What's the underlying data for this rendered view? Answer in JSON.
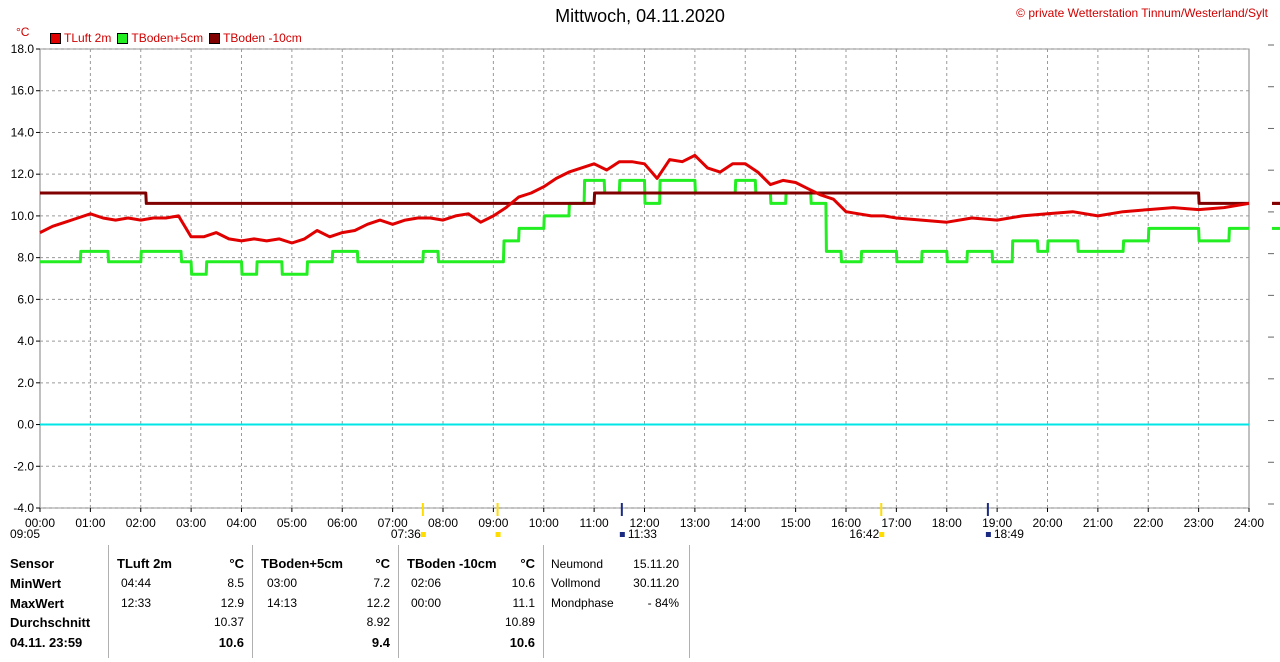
{
  "header": {
    "title": "Mittwoch, 04.11.2020",
    "credit": "© private Wetterstation Tinnum/Westerland/Sylt",
    "unit": "°C"
  },
  "colors": {
    "tluft": "#e00000",
    "tboden5": "#22ee22",
    "tboden10": "#800000",
    "zero_line": "#00e5e5"
  },
  "chart_data": {
    "type": "line",
    "title": "Mittwoch, 04.11.2020",
    "ylabel": "°C",
    "ylim": [
      -4,
      18
    ],
    "xlim": [
      0,
      24
    ],
    "grid": true,
    "legend_position": "top-left",
    "yticks": [
      "18.0",
      "16.0",
      "14.0",
      "12.0",
      "10.0",
      "8.0",
      "6.0",
      "4.0",
      "2.0",
      "0.0",
      "-2.0",
      "-4.0"
    ],
    "xticks": [
      "00:00",
      "01:00",
      "02:00",
      "03:00",
      "04:00",
      "05:00",
      "06:00",
      "07:00",
      "08:00",
      "09:00",
      "10:00",
      "11:00",
      "12:00",
      "13:00",
      "14:00",
      "15:00",
      "16:00",
      "17:00",
      "18:00",
      "19:00",
      "20:00",
      "21:00",
      "22:00",
      "23:00",
      "24:00"
    ],
    "series": [
      {
        "name": "TLuft 2m",
        "x": [
          0,
          0.25,
          0.5,
          0.75,
          1.0,
          1.25,
          1.5,
          1.75,
          2.0,
          2.25,
          2.5,
          2.75,
          3.0,
          3.25,
          3.5,
          3.75,
          4.0,
          4.25,
          4.5,
          4.75,
          5.0,
          5.25,
          5.5,
          5.75,
          6.0,
          6.25,
          6.5,
          6.75,
          7.0,
          7.25,
          7.5,
          7.75,
          8.0,
          8.25,
          8.5,
          8.75,
          9.0,
          9.25,
          9.5,
          9.75,
          10.0,
          10.25,
          10.5,
          10.75,
          11.0,
          11.25,
          11.5,
          11.75,
          12.0,
          12.25,
          12.5,
          12.75,
          13.0,
          13.25,
          13.5,
          13.75,
          14.0,
          14.25,
          14.5,
          14.75,
          15.0,
          15.25,
          15.5,
          15.75,
          16.0,
          16.25,
          16.5,
          16.75,
          17.0,
          17.5,
          18.0,
          18.5,
          19.0,
          19.5,
          20.0,
          20.5,
          21.0,
          21.5,
          22.0,
          22.5,
          23.0,
          23.5,
          24.0
        ],
        "values": [
          9.2,
          9.5,
          9.7,
          9.9,
          10.1,
          9.9,
          9.8,
          9.9,
          9.8,
          9.9,
          9.9,
          10.0,
          9.0,
          9.0,
          9.2,
          8.9,
          8.8,
          8.9,
          8.8,
          8.9,
          8.7,
          8.9,
          9.3,
          9.0,
          9.2,
          9.3,
          9.6,
          9.8,
          9.6,
          9.8,
          9.9,
          9.9,
          9.8,
          10.0,
          10.1,
          9.7,
          10.0,
          10.4,
          10.9,
          11.1,
          11.4,
          11.8,
          12.1,
          12.3,
          12.5,
          12.2,
          12.6,
          12.6,
          12.5,
          11.8,
          12.7,
          12.6,
          12.9,
          12.3,
          12.1,
          12.5,
          12.5,
          12.1,
          11.5,
          11.7,
          11.6,
          11.3,
          11.0,
          10.8,
          10.2,
          10.1,
          10.0,
          10.0,
          9.9,
          9.8,
          9.7,
          9.9,
          9.8,
          10.0,
          10.1,
          10.2,
          10.0,
          10.2,
          10.3,
          10.4,
          10.3,
          10.4,
          10.6
        ]
      },
      {
        "name": "TBoden+5cm",
        "x": [
          0,
          0.8,
          0.81,
          1.35,
          1.36,
          2.0,
          2.01,
          2.8,
          2.81,
          3.0,
          3.01,
          3.3,
          3.31,
          4.0,
          4.01,
          4.3,
          4.31,
          4.8,
          4.81,
          5.3,
          5.31,
          5.8,
          5.81,
          6.3,
          6.31,
          7.6,
          7.61,
          7.9,
          7.91,
          9.2,
          9.21,
          9.5,
          9.51,
          10.0,
          10.01,
          10.5,
          10.51,
          10.8,
          10.81,
          11.2,
          11.21,
          11.5,
          11.51,
          12.0,
          12.01,
          12.3,
          12.31,
          13.0,
          13.01,
          13.8,
          13.81,
          14.2,
          14.21,
          14.5,
          14.51,
          14.8,
          14.81,
          15.3,
          15.31,
          15.6,
          15.61,
          15.9,
          15.91,
          16.3,
          16.31,
          17.0,
          17.01,
          17.5,
          17.51,
          18.0,
          18.01,
          18.4,
          18.41,
          18.9,
          18.91,
          19.3,
          19.31,
          19.8,
          19.81,
          20.0,
          20.01,
          20.6,
          20.61,
          21.5,
          21.51,
          22.0,
          22.01,
          23.0,
          23.01,
          23.6,
          23.61,
          24.0
        ],
        "values": [
          7.8,
          7.8,
          8.3,
          8.3,
          7.8,
          7.8,
          8.3,
          8.3,
          7.8,
          7.8,
          7.2,
          7.2,
          7.8,
          7.8,
          7.2,
          7.2,
          7.8,
          7.8,
          7.2,
          7.2,
          7.8,
          7.8,
          8.3,
          8.3,
          7.8,
          7.8,
          8.3,
          8.3,
          7.8,
          7.8,
          8.8,
          8.8,
          9.4,
          9.4,
          10.0,
          10.0,
          10.6,
          10.6,
          11.7,
          11.7,
          11.1,
          11.1,
          11.7,
          11.7,
          10.6,
          10.6,
          11.7,
          11.7,
          11.1,
          11.1,
          11.7,
          11.7,
          11.1,
          11.1,
          10.6,
          10.6,
          11.1,
          11.1,
          10.6,
          10.6,
          8.3,
          8.3,
          7.8,
          7.8,
          8.3,
          8.3,
          7.8,
          7.8,
          8.3,
          8.3,
          7.8,
          7.8,
          8.3,
          8.3,
          7.8,
          7.8,
          8.8,
          8.8,
          8.3,
          8.3,
          8.8,
          8.8,
          8.3,
          8.3,
          8.8,
          8.8,
          9.4,
          9.4,
          8.8,
          8.8,
          9.4,
          9.4
        ]
      },
      {
        "name": "TBoden -10cm",
        "x": [
          0,
          2.1,
          2.11,
          11.0,
          11.01,
          23.0,
          23.01,
          24.0
        ],
        "values": [
          11.1,
          11.1,
          10.6,
          10.6,
          11.1,
          11.1,
          10.6,
          10.6
        ]
      }
    ],
    "event_markers": [
      {
        "time": "09:05",
        "label": "09:05"
      },
      {
        "time": "07:36",
        "label": "07:36"
      },
      {
        "time": "11:33",
        "label": "11:33"
      },
      {
        "time": "16:42",
        "label": "16:42"
      },
      {
        "time": "18:49",
        "label": "18:49"
      }
    ],
    "zero_line": 0.0
  },
  "table": {
    "sensor_col": {
      "header": "Sensor",
      "rows": [
        "MinWert",
        "MaxWert",
        "Durchschnitt",
        "04.11. 23:59"
      ]
    },
    "tluft": {
      "name": "TLuft 2m",
      "unit": "°C",
      "min_time": "04:44",
      "min_val": "8.5",
      "max_time": "12:33",
      "max_val": "12.9",
      "avg": "10.37",
      "cur": "10.6"
    },
    "tboden5": {
      "name": "TBoden+5cm",
      "unit": "°C",
      "min_time": "03:00",
      "min_val": "7.2",
      "max_time": "14:13",
      "max_val": "12.2",
      "avg": "8.92",
      "cur": "9.4"
    },
    "tboden10": {
      "name": "TBoden -10cm",
      "unit": "°C",
      "min_time": "02:06",
      "min_val": "10.6",
      "max_time": "00:00",
      "max_val": "11.1",
      "avg": "10.89",
      "cur": "10.6"
    },
    "moon": {
      "neumond_label": "Neumond",
      "neumond_date": "15.11.20",
      "vollmond_label": "Vollmond",
      "vollmond_date": "30.11.20",
      "phase_label": "Mondphase",
      "phase_val": "- 84%"
    }
  }
}
